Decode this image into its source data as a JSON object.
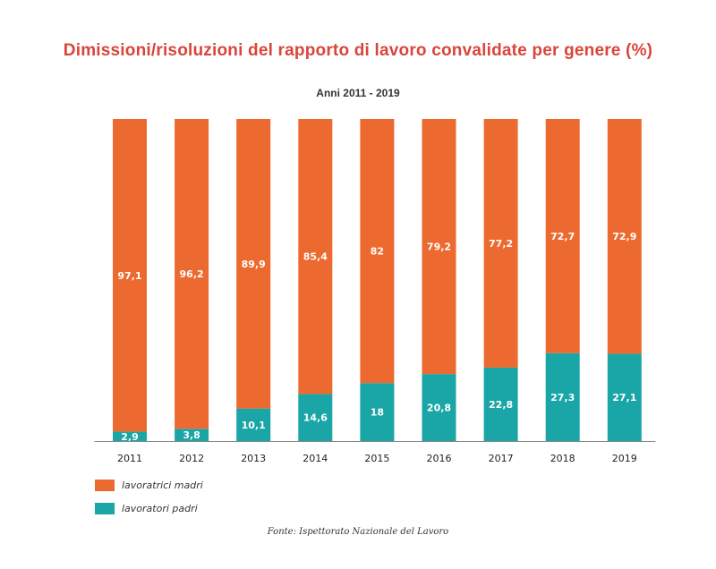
{
  "chart_data": {
    "type": "bar",
    "stacked": true,
    "title": "Dimissioni/risoluzioni del rapporto di lavoro convalidate per genere (%)",
    "subtitle": "Anni 2011 - 2019",
    "categories": [
      "2011",
      "2012",
      "2013",
      "2014",
      "2015",
      "2016",
      "2017",
      "2018",
      "2019"
    ],
    "series": [
      {
        "name": "lavoratori padri",
        "color": "#1aa5a6",
        "values": [
          2.9,
          3.8,
          10.1,
          14.6,
          18,
          20.8,
          22.8,
          27.3,
          27.1
        ],
        "labels": [
          "2,9",
          "3,8",
          "10,1",
          "14,6",
          "18",
          "20,8",
          "22,8",
          "27,3",
          "27,1"
        ]
      },
      {
        "name": "lavoratrici madri",
        "color": "#ec6a2f",
        "values": [
          97.1,
          96.2,
          89.9,
          85.4,
          82,
          79.2,
          77.2,
          72.7,
          72.9
        ],
        "labels": [
          "97,1",
          "96,2",
          "89,9",
          "85,4",
          "82",
          "79,2",
          "77,2",
          "72,7",
          "72,9"
        ]
      }
    ],
    "ylim": [
      0,
      100
    ],
    "grid": false,
    "legend_position": "bottom-left",
    "source": "Fonte: Ispettorato Nazionale del Lavoro"
  }
}
